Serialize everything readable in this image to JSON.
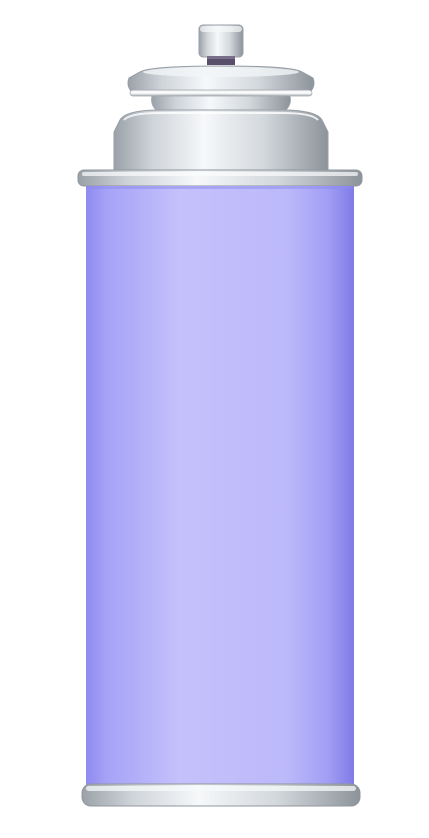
{
  "scene": {
    "subject": "aerosol-canister",
    "colors": {
      "background": "#ffffff",
      "body_light": "#c2bff9",
      "body_mid": "#a9a6f5",
      "body_dark": "#7f7be8",
      "metal_light": "#f2f4f6",
      "metal_mid": "#c9ced4",
      "metal_dark": "#8e959c",
      "stem_dark": "#4a3f5a"
    }
  }
}
